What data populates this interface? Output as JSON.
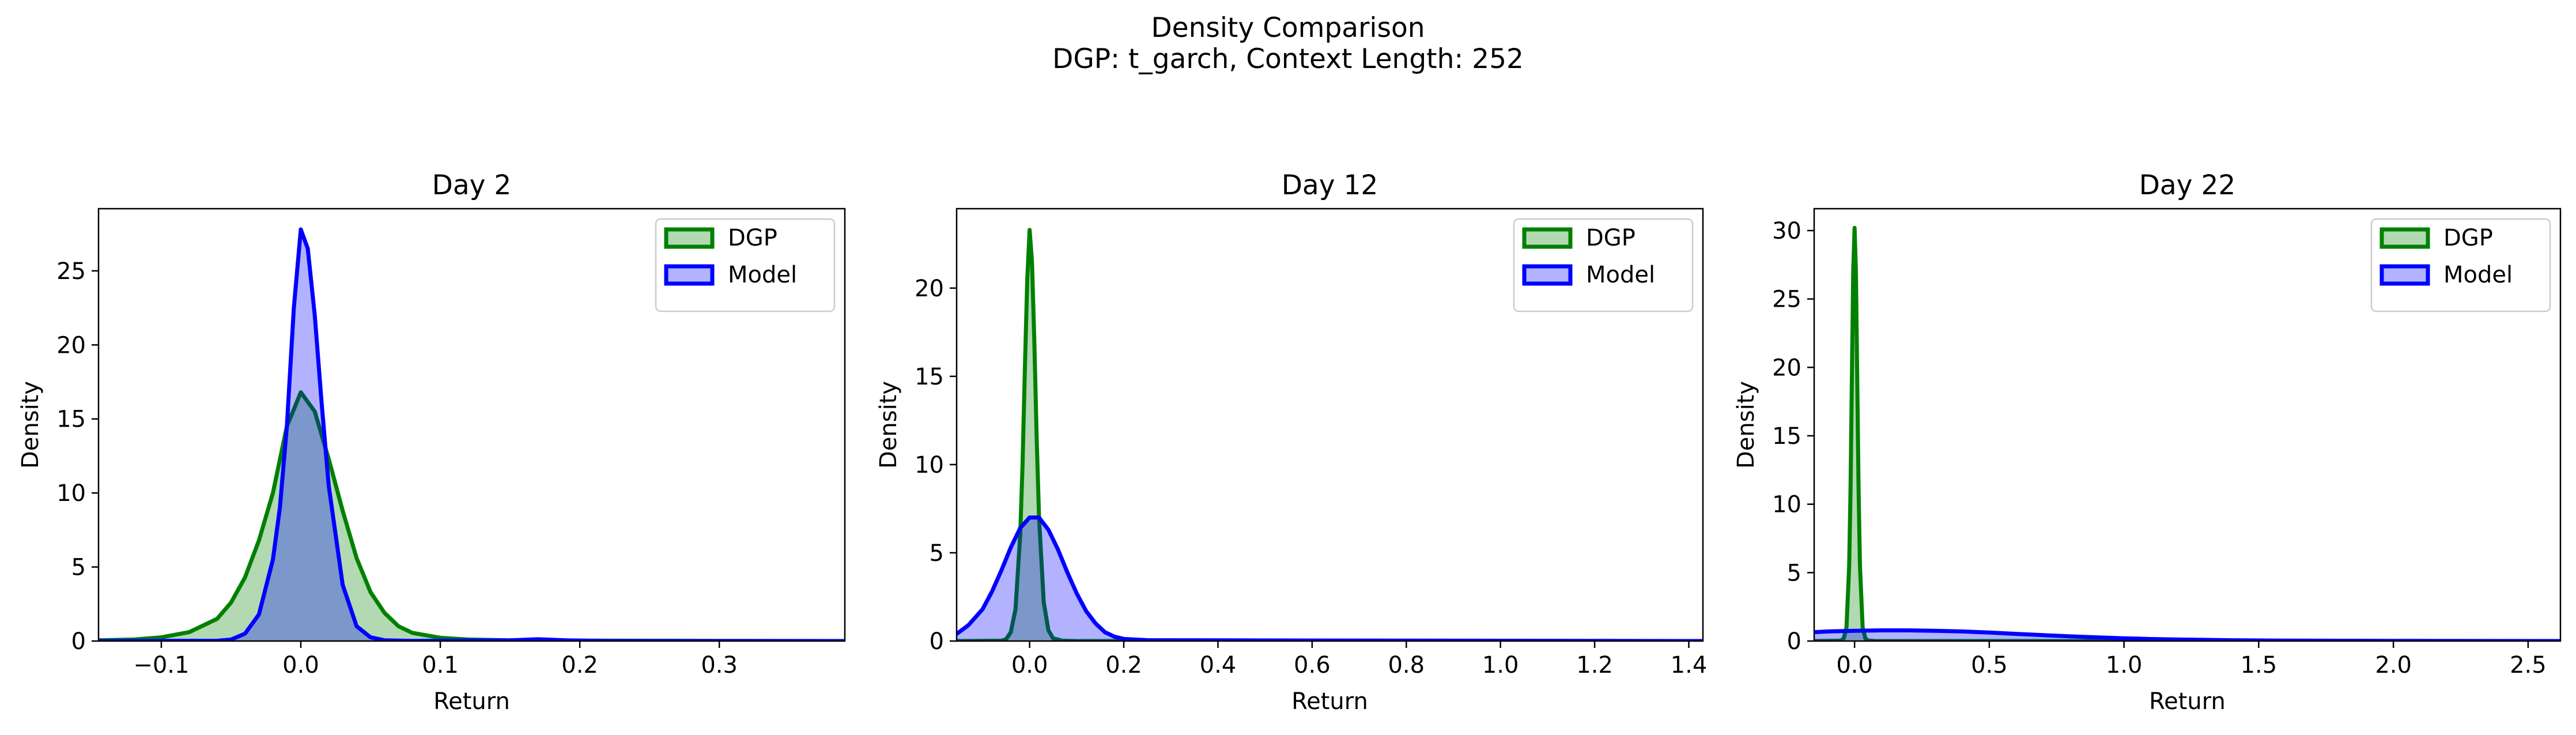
{
  "figure": {
    "title": "Density Comparison",
    "subtitle": "DGP: t_garch, Context Length: 252"
  },
  "colors": {
    "dgp_line": "#008000",
    "dgp_fill": "#008000",
    "model_line": "#0000ff",
    "model_fill": "#0000ff",
    "axes": "#000000"
  },
  "chart_data": [
    {
      "type": "area",
      "title": "Day 2",
      "xlabel": "Return",
      "ylabel": "Density",
      "xlim": [
        -0.145,
        0.39
      ],
      "ylim": [
        0,
        29.2
      ],
      "xticks": [
        -0.1,
        0.0,
        0.1,
        0.2,
        0.3
      ],
      "xtick_labels": [
        "−0.1",
        "0.0",
        "0.1",
        "0.2",
        "0.3"
      ],
      "yticks": [
        0,
        5,
        10,
        15,
        20,
        25
      ],
      "ytick_labels": [
        "0",
        "5",
        "10",
        "15",
        "20",
        "25"
      ],
      "legend_position": "upper right",
      "series": [
        {
          "name": "DGP",
          "points": [
            [
              -0.145,
              0.05
            ],
            [
              -0.12,
              0.1
            ],
            [
              -0.1,
              0.25
            ],
            [
              -0.08,
              0.6
            ],
            [
              -0.06,
              1.5
            ],
            [
              -0.05,
              2.6
            ],
            [
              -0.04,
              4.3
            ],
            [
              -0.03,
              6.8
            ],
            [
              -0.02,
              10.0
            ],
            [
              -0.01,
              14.5
            ],
            [
              0.0,
              16.8
            ],
            [
              0.01,
              15.5
            ],
            [
              0.02,
              12.3
            ],
            [
              0.03,
              8.8
            ],
            [
              0.04,
              5.6
            ],
            [
              0.05,
              3.3
            ],
            [
              0.06,
              1.9
            ],
            [
              0.07,
              1.0
            ],
            [
              0.08,
              0.55
            ],
            [
              0.1,
              0.22
            ],
            [
              0.12,
              0.1
            ],
            [
              0.15,
              0.05
            ],
            [
              0.2,
              0.03
            ],
            [
              0.25,
              0.02
            ],
            [
              0.3,
              0.01
            ],
            [
              0.39,
              0.0
            ]
          ]
        },
        {
          "name": "Model",
          "points": [
            [
              -0.145,
              0.0
            ],
            [
              -0.06,
              0.02
            ],
            [
              -0.05,
              0.1
            ],
            [
              -0.04,
              0.5
            ],
            [
              -0.03,
              1.8
            ],
            [
              -0.02,
              5.5
            ],
            [
              -0.015,
              9.0
            ],
            [
              -0.01,
              14.5
            ],
            [
              -0.005,
              22.5
            ],
            [
              0.0,
              27.8
            ],
            [
              0.005,
              26.5
            ],
            [
              0.01,
              22.0
            ],
            [
              0.015,
              16.0
            ],
            [
              0.02,
              10.5
            ],
            [
              0.03,
              3.8
            ],
            [
              0.04,
              1.0
            ],
            [
              0.05,
              0.25
            ],
            [
              0.06,
              0.05
            ],
            [
              0.08,
              0.01
            ],
            [
              0.15,
              0.05
            ],
            [
              0.17,
              0.12
            ],
            [
              0.19,
              0.05
            ],
            [
              0.22,
              0.0
            ],
            [
              0.39,
              0.0
            ]
          ]
        }
      ]
    },
    {
      "type": "area",
      "title": "Day 12",
      "xlabel": "Return",
      "ylabel": "Density",
      "xlim": [
        -0.155,
        1.43
      ],
      "ylim": [
        0,
        24.5
      ],
      "xticks": [
        0.0,
        0.2,
        0.4,
        0.6,
        0.8,
        1.0,
        1.2,
        1.4
      ],
      "xtick_labels": [
        "0.0",
        "0.2",
        "0.4",
        "0.6",
        "0.8",
        "1.0",
        "1.2",
        "1.4"
      ],
      "yticks": [
        0,
        5,
        10,
        15,
        20
      ],
      "ytick_labels": [
        "0",
        "5",
        "10",
        "15",
        "20"
      ],
      "legend_position": "upper right",
      "series": [
        {
          "name": "DGP",
          "points": [
            [
              -0.155,
              0.0
            ],
            [
              -0.06,
              0.02
            ],
            [
              -0.05,
              0.1
            ],
            [
              -0.04,
              0.5
            ],
            [
              -0.03,
              1.8
            ],
            [
              -0.02,
              6.0
            ],
            [
              -0.015,
              10.0
            ],
            [
              -0.01,
              15.5
            ],
            [
              -0.005,
              20.5
            ],
            [
              0.0,
              23.3
            ],
            [
              0.005,
              21.5
            ],
            [
              0.01,
              17.0
            ],
            [
              0.015,
              11.5
            ],
            [
              0.02,
              7.0
            ],
            [
              0.03,
              2.2
            ],
            [
              0.04,
              0.6
            ],
            [
              0.05,
              0.15
            ],
            [
              0.07,
              0.02
            ],
            [
              0.1,
              0.0
            ],
            [
              1.43,
              0.0
            ]
          ]
        },
        {
          "name": "Model",
          "points": [
            [
              -0.155,
              0.4
            ],
            [
              -0.13,
              0.9
            ],
            [
              -0.1,
              1.8
            ],
            [
              -0.08,
              2.8
            ],
            [
              -0.06,
              4.0
            ],
            [
              -0.04,
              5.3
            ],
            [
              -0.02,
              6.4
            ],
            [
              0.0,
              7.0
            ],
            [
              0.02,
              7.0
            ],
            [
              0.04,
              6.3
            ],
            [
              0.06,
              5.2
            ],
            [
              0.08,
              3.9
            ],
            [
              0.1,
              2.7
            ],
            [
              0.12,
              1.7
            ],
            [
              0.14,
              1.0
            ],
            [
              0.16,
              0.5
            ],
            [
              0.18,
              0.25
            ],
            [
              0.2,
              0.12
            ],
            [
              0.25,
              0.05
            ],
            [
              0.4,
              0.04
            ],
            [
              0.6,
              0.03
            ],
            [
              0.9,
              0.02
            ],
            [
              1.2,
              0.01
            ],
            [
              1.43,
              0.0
            ]
          ]
        }
      ]
    },
    {
      "type": "area",
      "title": "Day 22",
      "xlabel": "Return",
      "ylabel": "Density",
      "xlim": [
        -0.15,
        2.62
      ],
      "ylim": [
        0,
        31.6
      ],
      "xticks": [
        0.0,
        0.5,
        1.0,
        1.5,
        2.0,
        2.5
      ],
      "xtick_labels": [
        "0.0",
        "0.5",
        "1.0",
        "1.5",
        "2.0",
        "2.5"
      ],
      "yticks": [
        0,
        5,
        10,
        15,
        20,
        25,
        30
      ],
      "ytick_labels": [
        "0",
        "5",
        "10",
        "15",
        "20",
        "25",
        "30"
      ],
      "legend_position": "upper right",
      "series": [
        {
          "name": "DGP",
          "points": [
            [
              -0.15,
              0.0
            ],
            [
              -0.05,
              0.03
            ],
            [
              -0.04,
              0.2
            ],
            [
              -0.03,
              1.0
            ],
            [
              -0.02,
              5.5
            ],
            [
              -0.015,
              11.0
            ],
            [
              -0.01,
              19.0
            ],
            [
              -0.005,
              27.0
            ],
            [
              0.0,
              30.2
            ],
            [
              0.005,
              27.0
            ],
            [
              0.01,
              19.0
            ],
            [
              0.015,
              11.0
            ],
            [
              0.02,
              5.5
            ],
            [
              0.03,
              1.0
            ],
            [
              0.04,
              0.2
            ],
            [
              0.05,
              0.03
            ],
            [
              0.08,
              0.0
            ],
            [
              2.62,
              0.0
            ]
          ]
        },
        {
          "name": "Model",
          "points": [
            [
              -0.15,
              0.65
            ],
            [
              -0.1,
              0.7
            ],
            [
              0.0,
              0.75
            ],
            [
              0.1,
              0.78
            ],
            [
              0.2,
              0.78
            ],
            [
              0.3,
              0.75
            ],
            [
              0.4,
              0.7
            ],
            [
              0.5,
              0.62
            ],
            [
              0.6,
              0.52
            ],
            [
              0.7,
              0.43
            ],
            [
              0.8,
              0.34
            ],
            [
              0.9,
              0.27
            ],
            [
              1.0,
              0.2
            ],
            [
              1.1,
              0.15
            ],
            [
              1.2,
              0.11
            ],
            [
              1.4,
              0.06
            ],
            [
              1.6,
              0.03
            ],
            [
              1.8,
              0.02
            ],
            [
              2.0,
              0.01
            ],
            [
              2.62,
              0.0
            ]
          ]
        }
      ]
    }
  ]
}
